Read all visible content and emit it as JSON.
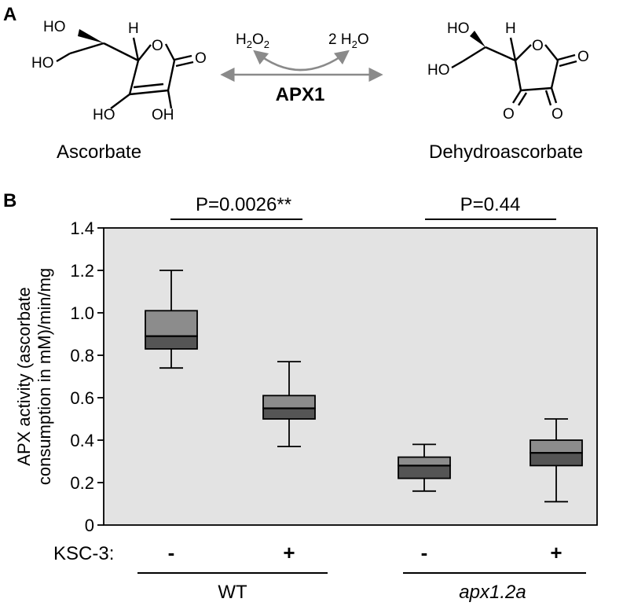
{
  "panel_a": {
    "label": "A",
    "enzyme": "APX1",
    "substrate_name": "Ascorbate",
    "product_name": "Dehydroascorbate",
    "reactant": "H2O2",
    "byproduct": "2 H2O",
    "atoms": {
      "HO": "HO",
      "OH": "OH",
      "H": "H",
      "O": "O"
    }
  },
  "panel_b": {
    "label": "B",
    "treatment_label": "KSC-3:",
    "groups": [
      "WT",
      "apx1.2a"
    ],
    "comparisons": [
      "P=0.0026**",
      "P=0.44"
    ]
  },
  "colors": {
    "plot_bg": "#e3e3e3",
    "box_upper": "#8c8c8c",
    "box_lower": "#555555",
    "arrow": "#8a8a8a"
  },
  "chart_data": {
    "type": "box",
    "ylabel_line1": "APX activity (ascorbate",
    "ylabel_line2": "consumption in mM)/min/mg",
    "ylim": [
      0,
      1.4
    ],
    "yticks": [
      "0",
      "0.2",
      "0.4",
      "0.6",
      "0.8",
      "1.0",
      "1.2",
      "1.4"
    ],
    "grid": false,
    "boxes": [
      {
        "group": "WT",
        "ksc3": "-",
        "min": 0.74,
        "q1": 0.83,
        "median": 0.89,
        "q3": 1.01,
        "max": 1.2
      },
      {
        "group": "WT",
        "ksc3": "+",
        "min": 0.37,
        "q1": 0.5,
        "median": 0.55,
        "q3": 0.61,
        "max": 0.77
      },
      {
        "group": "apx1.2a",
        "ksc3": "-",
        "min": 0.16,
        "q1": 0.22,
        "median": 0.28,
        "q3": 0.32,
        "max": 0.38
      },
      {
        "group": "apx1.2a",
        "ksc3": "+",
        "min": 0.11,
        "q1": 0.28,
        "median": 0.34,
        "q3": 0.4,
        "max": 0.5
      }
    ]
  }
}
